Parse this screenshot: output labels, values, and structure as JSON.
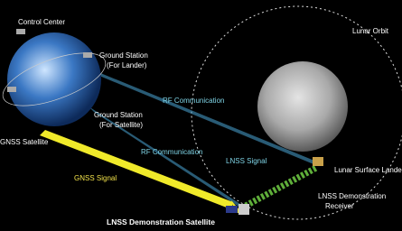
{
  "labels": {
    "control_center": "Control Center",
    "ground_station_lander": [
      "Ground Station",
      "(For Lander)"
    ],
    "ground_station_satellite": [
      "Ground Station",
      "(For Satellite)"
    ],
    "rf_communication_upper": "RF Communication",
    "rf_communication_lower": "RF Communication",
    "gnss_satellite": "GNSS Satellite",
    "gnss_signal": "GNSS Signal",
    "lnss_signal": "LNSS Signal",
    "lunar_orbit": "Lunar Orbit",
    "lunar_surface_lander": "Lunar Surface Lander",
    "lnss_receiver": [
      "LNSS Demonstration",
      "Receiver"
    ],
    "lnss_satellite": "LNSS Demonstration Satellite"
  }
}
